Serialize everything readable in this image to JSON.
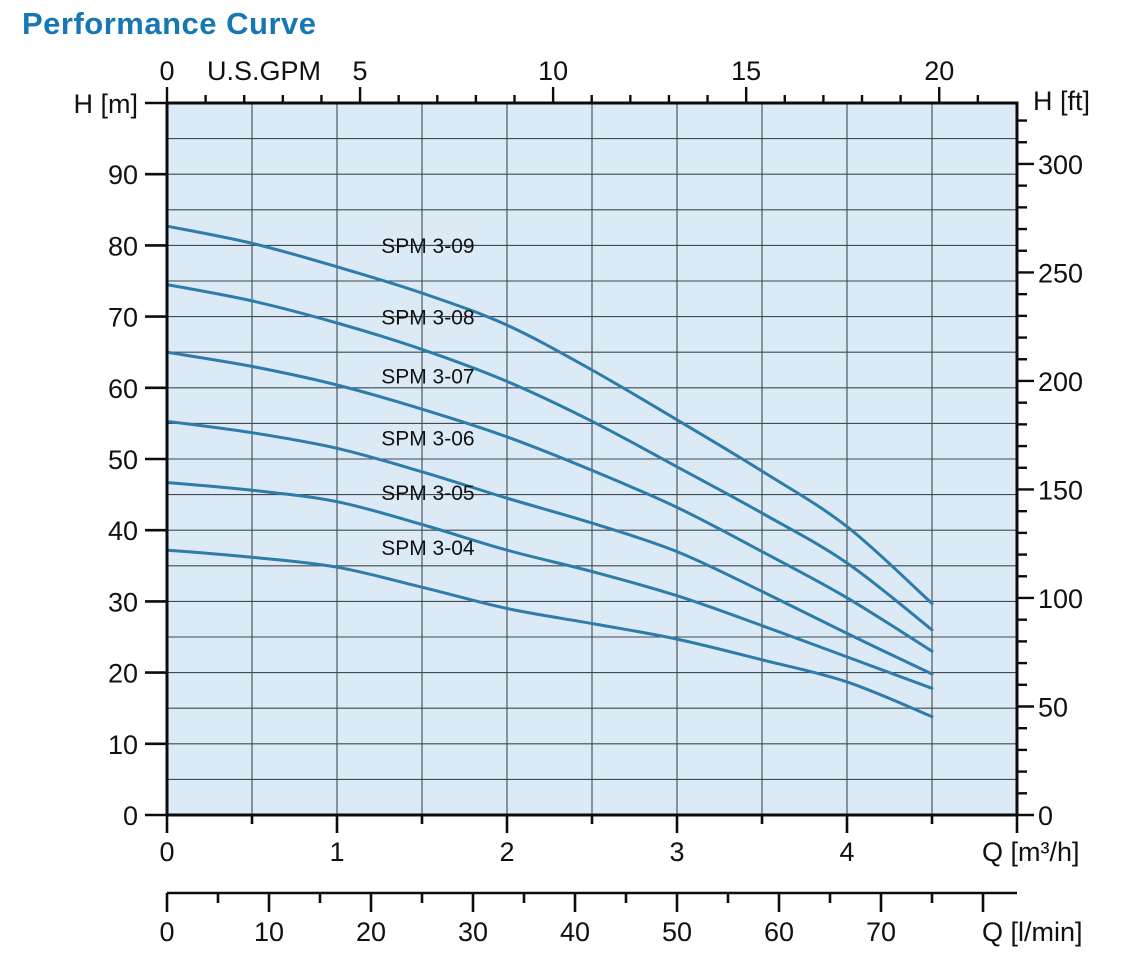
{
  "header": {
    "title": "Performance Curve",
    "title_color": "#1577b4"
  },
  "chart_data": {
    "type": "line",
    "title": "Performance Curve",
    "colors": {
      "plot_bg": "#dbeaf5",
      "grid": "#3d4a52",
      "axis": "#0c0c0c",
      "curve": "#2d7ca9",
      "text": "#111111"
    },
    "x_axis_bottom": {
      "label": "Q [m³/h]",
      "range": [
        0,
        5
      ],
      "major_ticks": [
        0,
        1,
        2,
        3,
        4
      ],
      "minor_tick_step": 0.5,
      "edge_tick": 5,
      "grid_step": 0.5
    },
    "x_axis_lmin": {
      "label": "Q [l/min]",
      "range": [
        0,
        80
      ],
      "major_ticks": [
        0,
        10,
        20,
        30,
        40,
        50,
        60,
        70
      ],
      "unlabeled_major_ticks": [
        80
      ],
      "minor_tick_step": 5,
      "lmin_per_m3h": 16.6667
    },
    "x_axis_top": {
      "label": "U.S.GPM",
      "major_ticks": [
        0,
        5,
        10,
        15,
        20
      ],
      "minor_tick_step": 1,
      "minor_tick_max": 21,
      "gpm_per_m3h": 4.40287
    },
    "y_axis_left": {
      "label": "H [m]",
      "range": [
        0,
        100
      ],
      "major_ticks": [
        0,
        10,
        20,
        30,
        40,
        50,
        60,
        70,
        80,
        90
      ],
      "unit_label_at": 100,
      "grid_step": 5
    },
    "y_axis_right": {
      "label": "H [ft]",
      "major_ticks": [
        0,
        50,
        100,
        150,
        200,
        250,
        300
      ],
      "minor_tick_step": 10,
      "minor_tick_max": 320,
      "ft_per_m": 3.28084
    },
    "q_values": [
      0,
      0.5,
      1,
      1.5,
      2,
      2.5,
      3,
      3.5,
      4,
      4.5
    ],
    "series": [
      {
        "name": "SPM 3-09",
        "h_values": [
          82.7,
          80.3,
          77.0,
          73.3,
          68.8,
          62.5,
          55.5,
          48.3,
          40.5,
          29.7
        ],
        "label_h": 79.9
      },
      {
        "name": "SPM 3-08",
        "h_values": [
          74.5,
          72.2,
          69.1,
          65.4,
          60.9,
          55.3,
          48.9,
          42.4,
          35.4,
          26.0
        ],
        "label_h": 69.9
      },
      {
        "name": "SPM 3-07",
        "h_values": [
          65.0,
          63.0,
          60.4,
          57.0,
          53.1,
          48.4,
          43.2,
          37.0,
          30.5,
          23.0
        ],
        "label_h": 61.6
      },
      {
        "name": "SPM 3-06",
        "h_values": [
          55.3,
          53.7,
          51.5,
          48.2,
          44.5,
          41.0,
          37.0,
          31.4,
          25.5,
          19.8
        ],
        "label_h": 52.9
      },
      {
        "name": "SPM 3-05",
        "h_values": [
          46.7,
          45.6,
          44.0,
          40.8,
          37.2,
          34.2,
          30.8,
          26.6,
          22.2,
          17.8
        ],
        "label_h": 45.2
      },
      {
        "name": "SPM 3-04",
        "h_values": [
          37.2,
          36.2,
          34.8,
          32.0,
          29.0,
          26.9,
          24.7,
          21.8,
          18.7,
          13.8
        ],
        "label_h": 37.5
      }
    ],
    "series_label_q": 1.26
  }
}
